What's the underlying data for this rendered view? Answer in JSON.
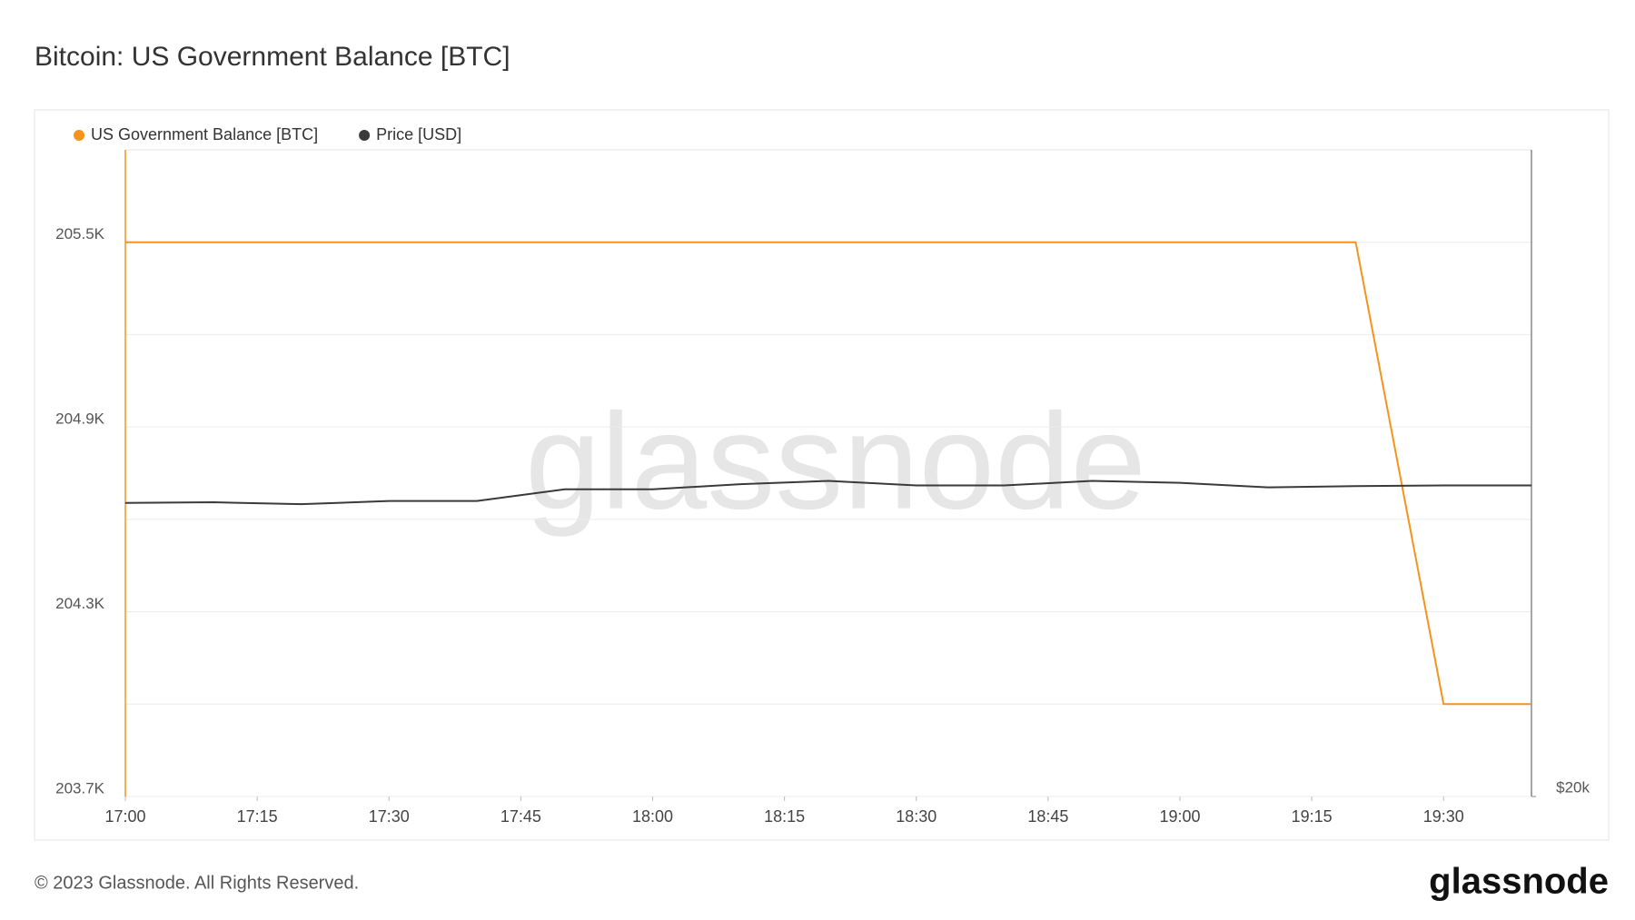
{
  "chart_data": {
    "type": "line",
    "title": "Bitcoin: US Government Balance [BTC]",
    "x": [
      "17:00",
      "17:10",
      "17:20",
      "17:30",
      "17:40",
      "17:50",
      "18:00",
      "18:10",
      "18:20",
      "18:30",
      "18:40",
      "18:50",
      "19:00",
      "19:10",
      "19:20",
      "19:30",
      "19:40"
    ],
    "xlim": [
      "17:00",
      "19:40"
    ],
    "xticks": [
      "17:00",
      "17:15",
      "17:30",
      "17:45",
      "18:00",
      "18:15",
      "18:30",
      "18:45",
      "19:00",
      "19:15",
      "19:30"
    ],
    "series": [
      {
        "name": "US Government Balance [BTC]",
        "color": "#f7931a",
        "values": [
          205500,
          205500,
          205500,
          205500,
          205500,
          205500,
          205500,
          205500,
          205500,
          205500,
          205500,
          205500,
          205500,
          205500,
          205500,
          204000,
          204000
        ]
      },
      {
        "name": "Price [USD]",
        "color": "#3a3a3a",
        "axis": "y2",
        "values": [
          24540,
          24550,
          24520,
          24570,
          24570,
          24750,
          24750,
          24830,
          24880,
          24810,
          24810,
          24880,
          24850,
          24780,
          24800,
          24810,
          24810
        ]
      }
    ],
    "ylim": [
      203700,
      205800
    ],
    "yticks": [
      {
        "value": 203700,
        "label": "203.7K"
      },
      {
        "value": 204300,
        "label": "204.3K"
      },
      {
        "value": 204900,
        "label": "204.9K"
      },
      {
        "value": 205500,
        "label": "205.5K"
      }
    ],
    "minor_yticks": [
      204000,
      204600,
      205200
    ],
    "y2lim": [
      20000,
      30000
    ],
    "y2ticks": [
      {
        "value": 20000,
        "label": "$20k"
      }
    ],
    "grid": true,
    "legend": "top-left",
    "watermark": "glassnode",
    "footer": "© 2023 Glassnode. All Rights Reserved.",
    "logo": "glassnode"
  }
}
